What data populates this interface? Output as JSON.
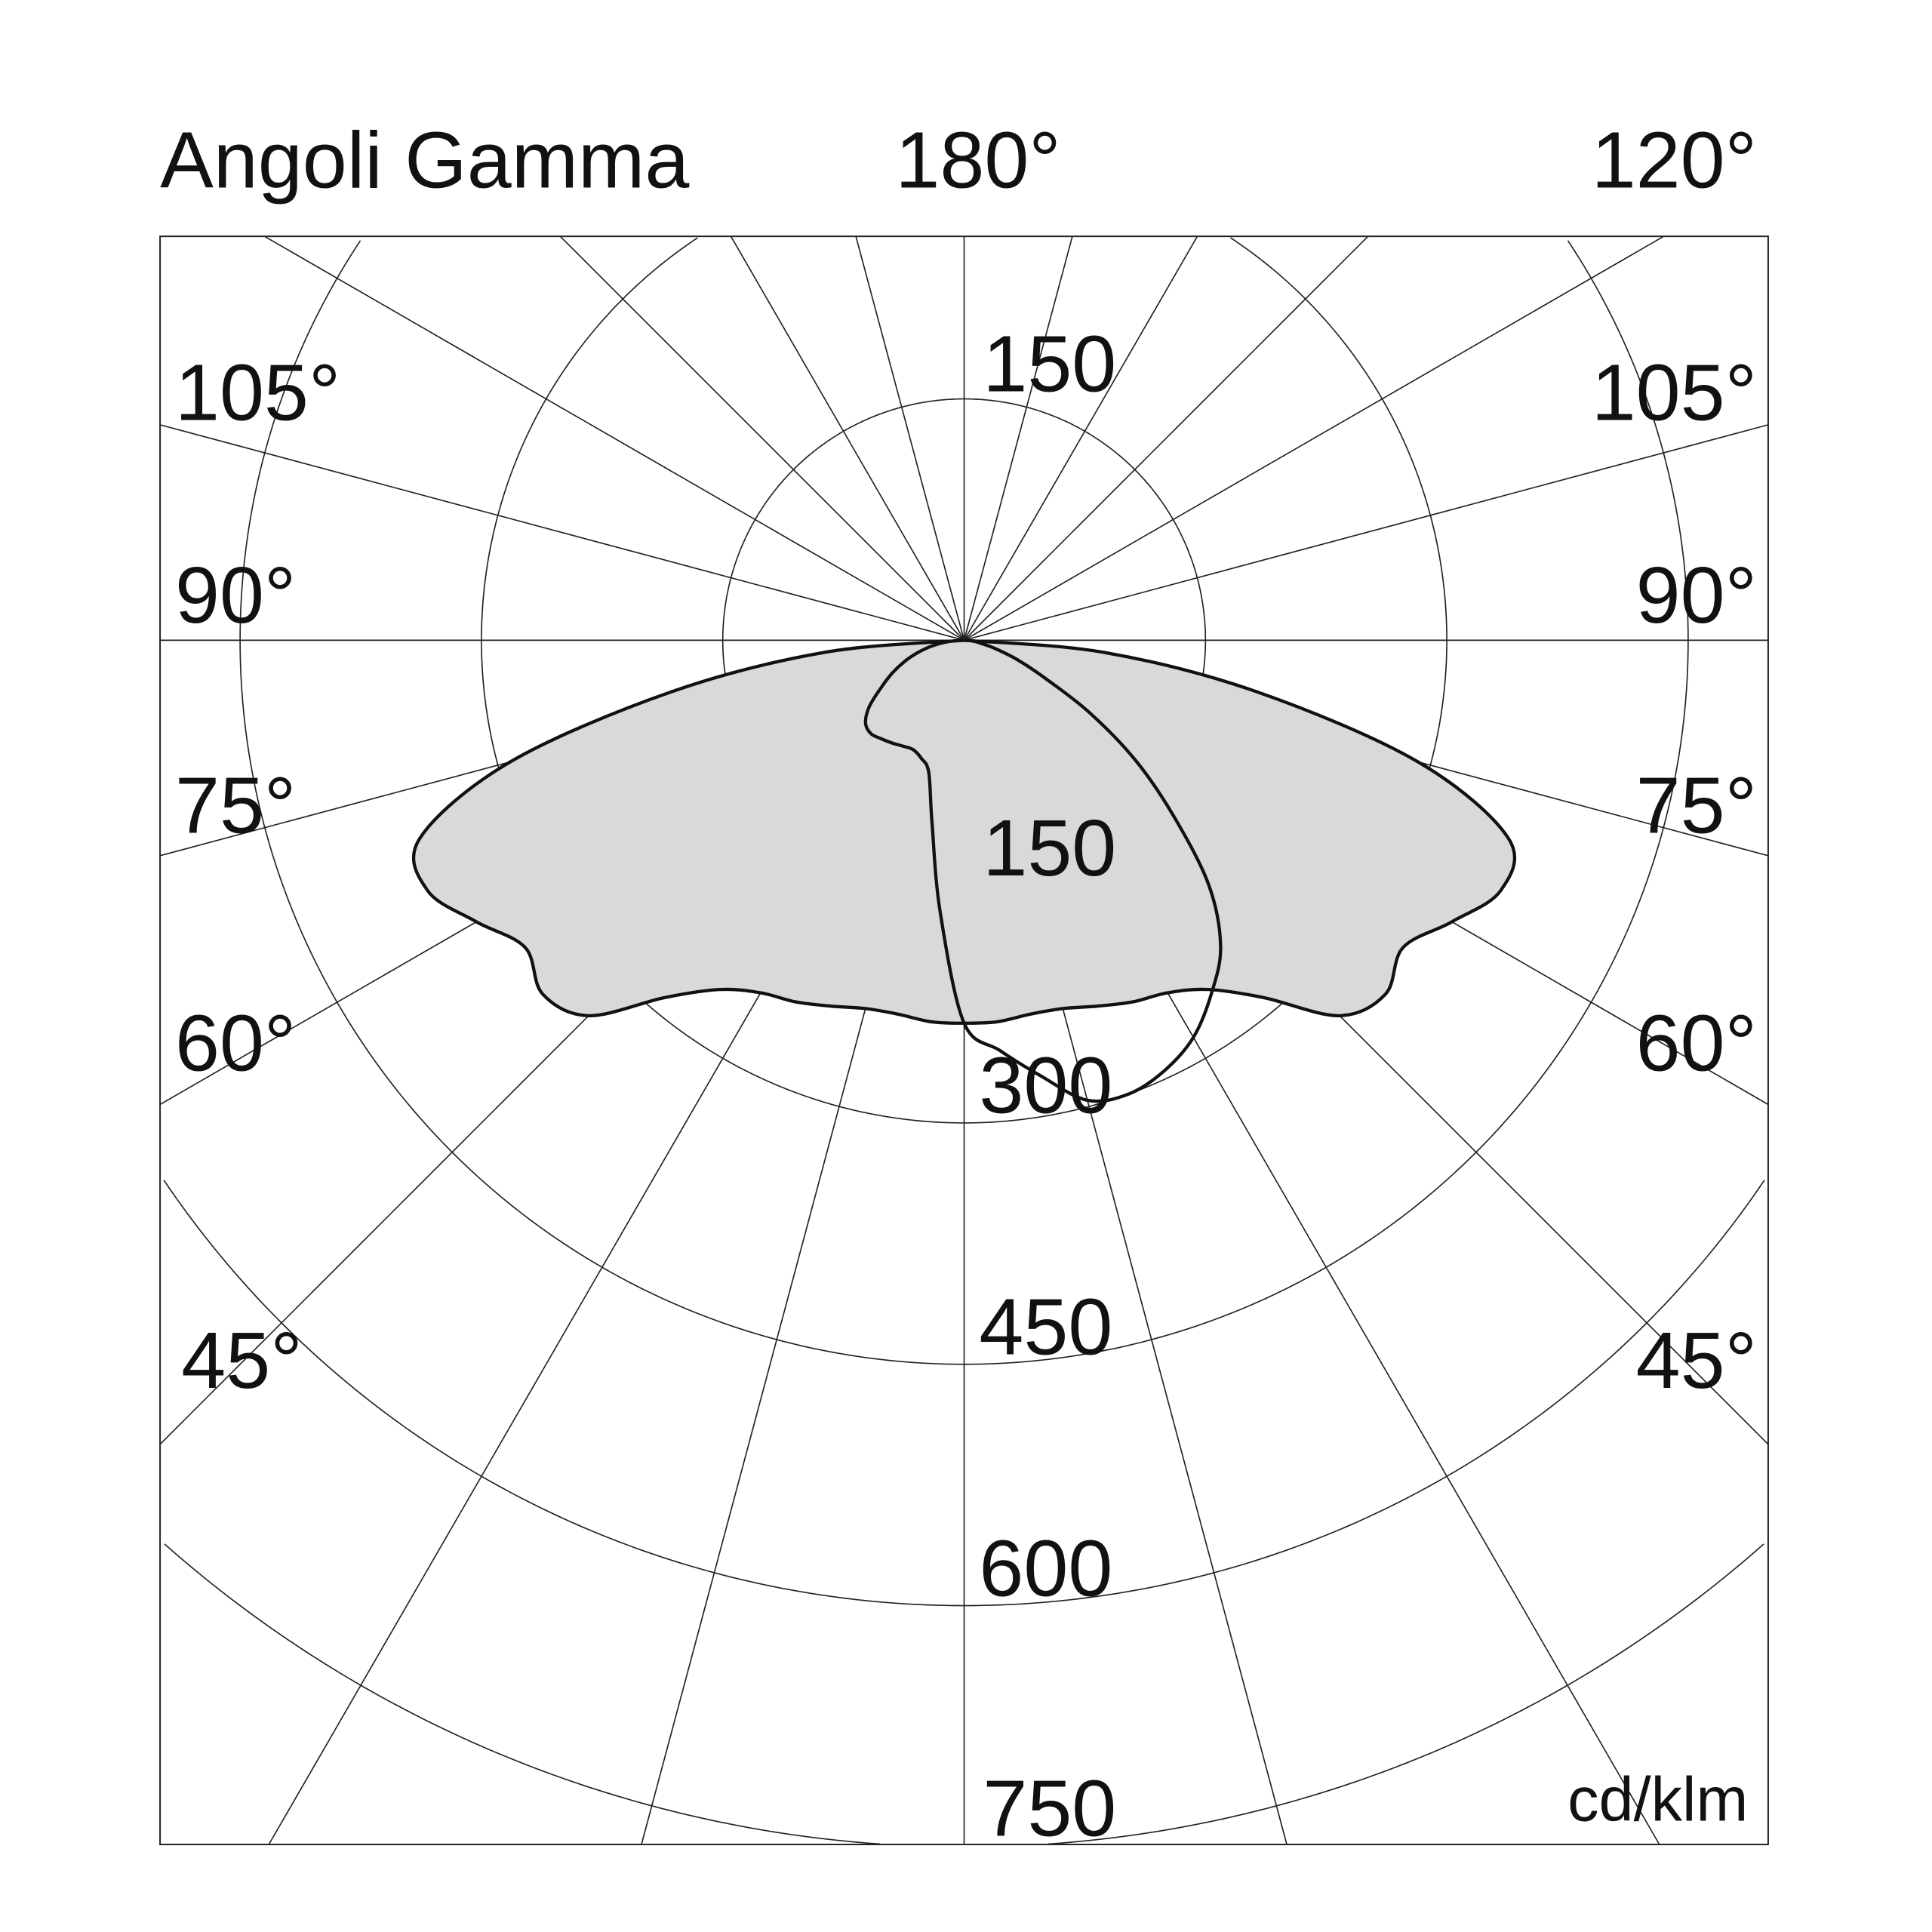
{
  "chart_data": {
    "type": "polar",
    "title": "Angoli Gamma",
    "unit": "cd/klm",
    "top_labels": [
      "180°",
      "120°"
    ],
    "angle_labels_left": [
      "105°",
      "90°",
      "75°",
      "60°",
      "45°"
    ],
    "angle_labels_right": [
      "105°",
      "90°",
      "75°",
      "60°",
      "45°"
    ],
    "radial_tick_labels": [
      "150",
      "150",
      "300",
      "450",
      "600",
      "750"
    ],
    "radial_rings": [
      150,
      300,
      450,
      600,
      750
    ],
    "radial_line_step_deg": 15,
    "gamma_deg": [
      0,
      5,
      10,
      15,
      20,
      25,
      30,
      35,
      40,
      45,
      50,
      55,
      60,
      65,
      70,
      75,
      80,
      85,
      90
    ],
    "series": [
      {
        "style": "filled",
        "fill": "#d9d9d9",
        "left": [
          238,
          238,
          236,
          237,
          242,
          248,
          253,
          265,
          290,
          330,
          342,
          333,
          350,
          368,
          360,
          292,
          185,
          88,
          0
        ],
        "right": [
          238,
          238,
          236,
          237,
          242,
          248,
          253,
          265,
          290,
          330,
          342,
          333,
          350,
          368,
          360,
          292,
          185,
          88,
          0
        ]
      },
      {
        "style": "outline",
        "fill": "none",
        "left": [
          238,
          170,
          115,
          85,
          78,
          75,
          76,
          78,
          80,
          82,
          80,
          72,
          60,
          50,
          40,
          30,
          20,
          10,
          0
        ],
        "right": [
          238,
          256,
          275,
          296,
          300,
          295,
          285,
          268,
          248,
          215,
          170,
          130,
          90,
          55,
          35,
          20,
          10,
          5,
          0
        ]
      }
    ],
    "colors": {
      "grid": "#222222",
      "curve": "#111111",
      "fill": "#d9d9d9"
    }
  }
}
